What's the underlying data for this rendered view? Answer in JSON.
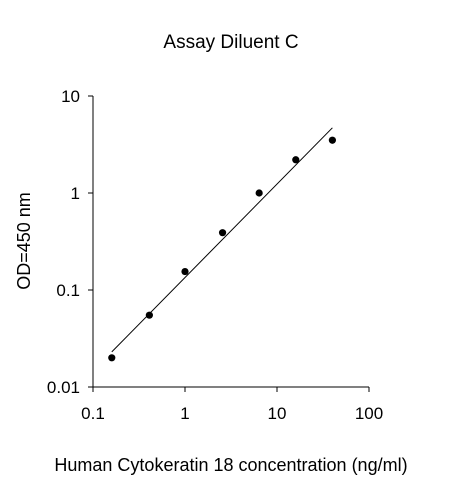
{
  "chart_data": {
    "type": "scatter",
    "title": "Assay Diluent C",
    "xlabel": "Human Cytokeratin 18 concentration (ng/ml)",
    "ylabel": "OD=450 nm",
    "x_scale": "log",
    "y_scale": "log",
    "xlim": [
      0.1,
      100
    ],
    "ylim": [
      0.01,
      10
    ],
    "x_ticks": [
      0.1,
      1,
      10,
      100
    ],
    "x_tick_labels": [
      "0.1",
      "1",
      "10",
      "100"
    ],
    "y_ticks": [
      0.01,
      0.1,
      1,
      10
    ],
    "y_tick_labels": [
      "0.01",
      "0.1",
      "1",
      "10"
    ],
    "grid": false,
    "legend": false,
    "series": [
      {
        "x": [
          0.16,
          0.41,
          1.0,
          2.56,
          6.4,
          16.0,
          40.0
        ],
        "y": [
          0.02,
          0.055,
          0.155,
          0.39,
          1.0,
          2.2,
          3.5
        ]
      }
    ],
    "fit_line": {
      "type": "linear-log-log",
      "x": [
        0.16,
        40.0
      ],
      "y": [
        0.023,
        4.7
      ]
    },
    "colors": {
      "marker": "#000000",
      "line": "#000000",
      "axis": "#000000"
    }
  }
}
